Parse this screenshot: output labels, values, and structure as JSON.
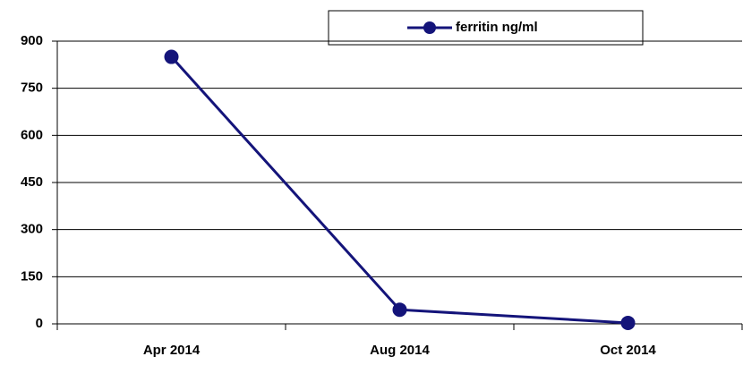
{
  "chart_data": {
    "type": "line",
    "categories": [
      "Apr 2014",
      "Aug 2014",
      "Oct 2014"
    ],
    "series": [
      {
        "name": "ferritin ng/ml",
        "color": "#14147a",
        "values": [
          850,
          45,
          3
        ]
      }
    ],
    "ylim": [
      0,
      900
    ],
    "yticks": [
      0,
      150,
      300,
      450,
      600,
      750,
      900
    ],
    "grid": true,
    "legend": "top"
  }
}
